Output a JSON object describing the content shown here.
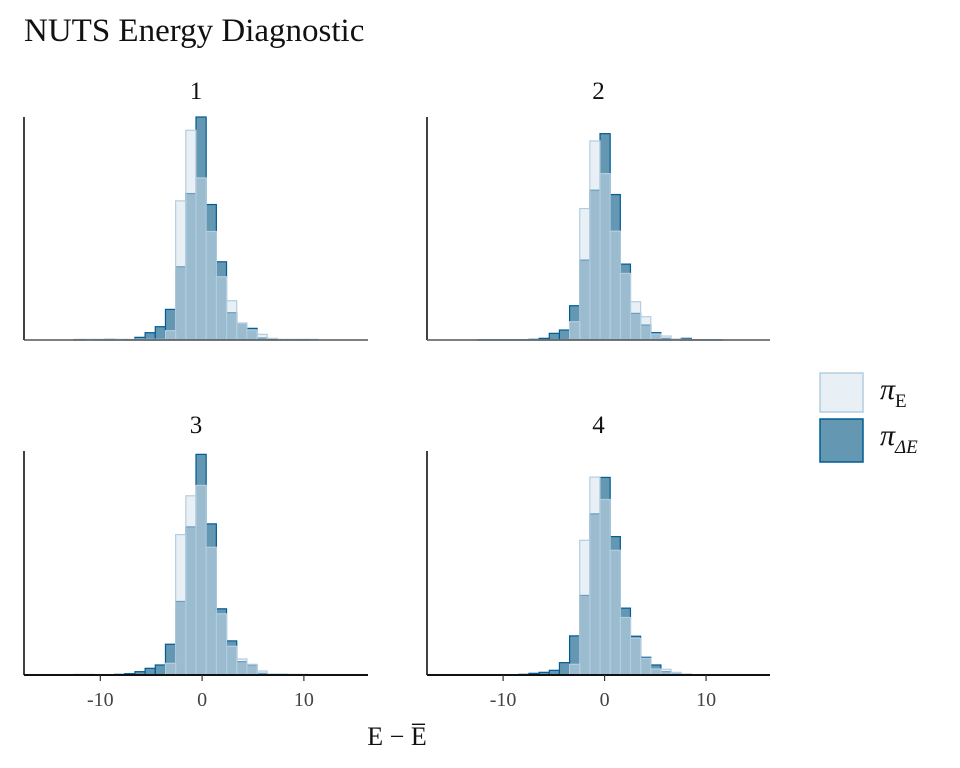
{
  "chart_data": {
    "type": "bar",
    "title": "NUTS Energy Diagnostic",
    "xlabel": "E − E̅",
    "ylabel": "",
    "xlim": [
      -17.5,
      16.3
    ],
    "ylim": [
      0,
      670
    ],
    "x_ticks": [
      -10,
      0,
      10
    ],
    "x_tick_labels": [
      "-10",
      "0",
      "10"
    ],
    "bin_width": 1,
    "legend": {
      "placement": "right",
      "entries": [
        {
          "symbol": "π",
          "sub": "E",
          "series": "E",
          "fill": "#d1e1ec",
          "stroke": "#b3cde0",
          "opacity": 0.5
        },
        {
          "symbol": "π",
          "sub": "ΔE",
          "series": "dE",
          "fill": "#6497b1",
          "stroke": "#005b96",
          "opacity": 1
        }
      ]
    },
    "panels": [
      {
        "label": "1",
        "bin_start": -12.6,
        "E": [
          2,
          2,
          2,
          2,
          2,
          2,
          2,
          2,
          2,
          28,
          418,
          630,
          487,
          326,
          190,
          118,
          50,
          30,
          17,
          5,
          2,
          2,
          2,
          2
        ],
        "dE": [
          1,
          0,
          1,
          2,
          0,
          1,
          8,
          22,
          40,
          92,
          220,
          440,
          670,
          407,
          235,
          82,
          50,
          35,
          6,
          2,
          1,
          1,
          1,
          0
        ]
      },
      {
        "label": "2",
        "bin_start": -12.45,
        "E": [
          1,
          1,
          1,
          1,
          1,
          1,
          1,
          1,
          1,
          55,
          395,
          598,
          500,
          327,
          200,
          115,
          70,
          18,
          12,
          3,
          2,
          1,
          1,
          1
        ],
        "dE": [
          1,
          1,
          1,
          1,
          1,
          2,
          5,
          20,
          30,
          103,
          240,
          450,
          620,
          437,
          228,
          80,
          45,
          22,
          5,
          0,
          5,
          1,
          1,
          1
        ]
      },
      {
        "label": "3",
        "bin_start": -12.6,
        "E": [
          2,
          2,
          1,
          1,
          1,
          1,
          1,
          1,
          1,
          35,
          420,
          536,
          567,
          382,
          183,
          86,
          48,
          32,
          12,
          3,
          3,
          2,
          2,
          1
        ],
        "dE": [
          1,
          1,
          1,
          1,
          2,
          4,
          10,
          20,
          30,
          92,
          220,
          443,
          660,
          452,
          198,
          102,
          40,
          30,
          5,
          1,
          1,
          1,
          1,
          0
        ]
      },
      {
        "label": "4",
        "bin_start": -12.45,
        "E": [
          1,
          1,
          1,
          1,
          1,
          1,
          1,
          1,
          1,
          32,
          403,
          592,
          525,
          373,
          172,
          110,
          50,
          18,
          17,
          8,
          3,
          1,
          1,
          1
        ],
        "dE": [
          1,
          1,
          1,
          1,
          2,
          5,
          8,
          14,
          37,
          117,
          238,
          482,
          591,
          414,
          200,
          116,
          53,
          30,
          10,
          3,
          2,
          1,
          1,
          0
        ]
      }
    ]
  }
}
